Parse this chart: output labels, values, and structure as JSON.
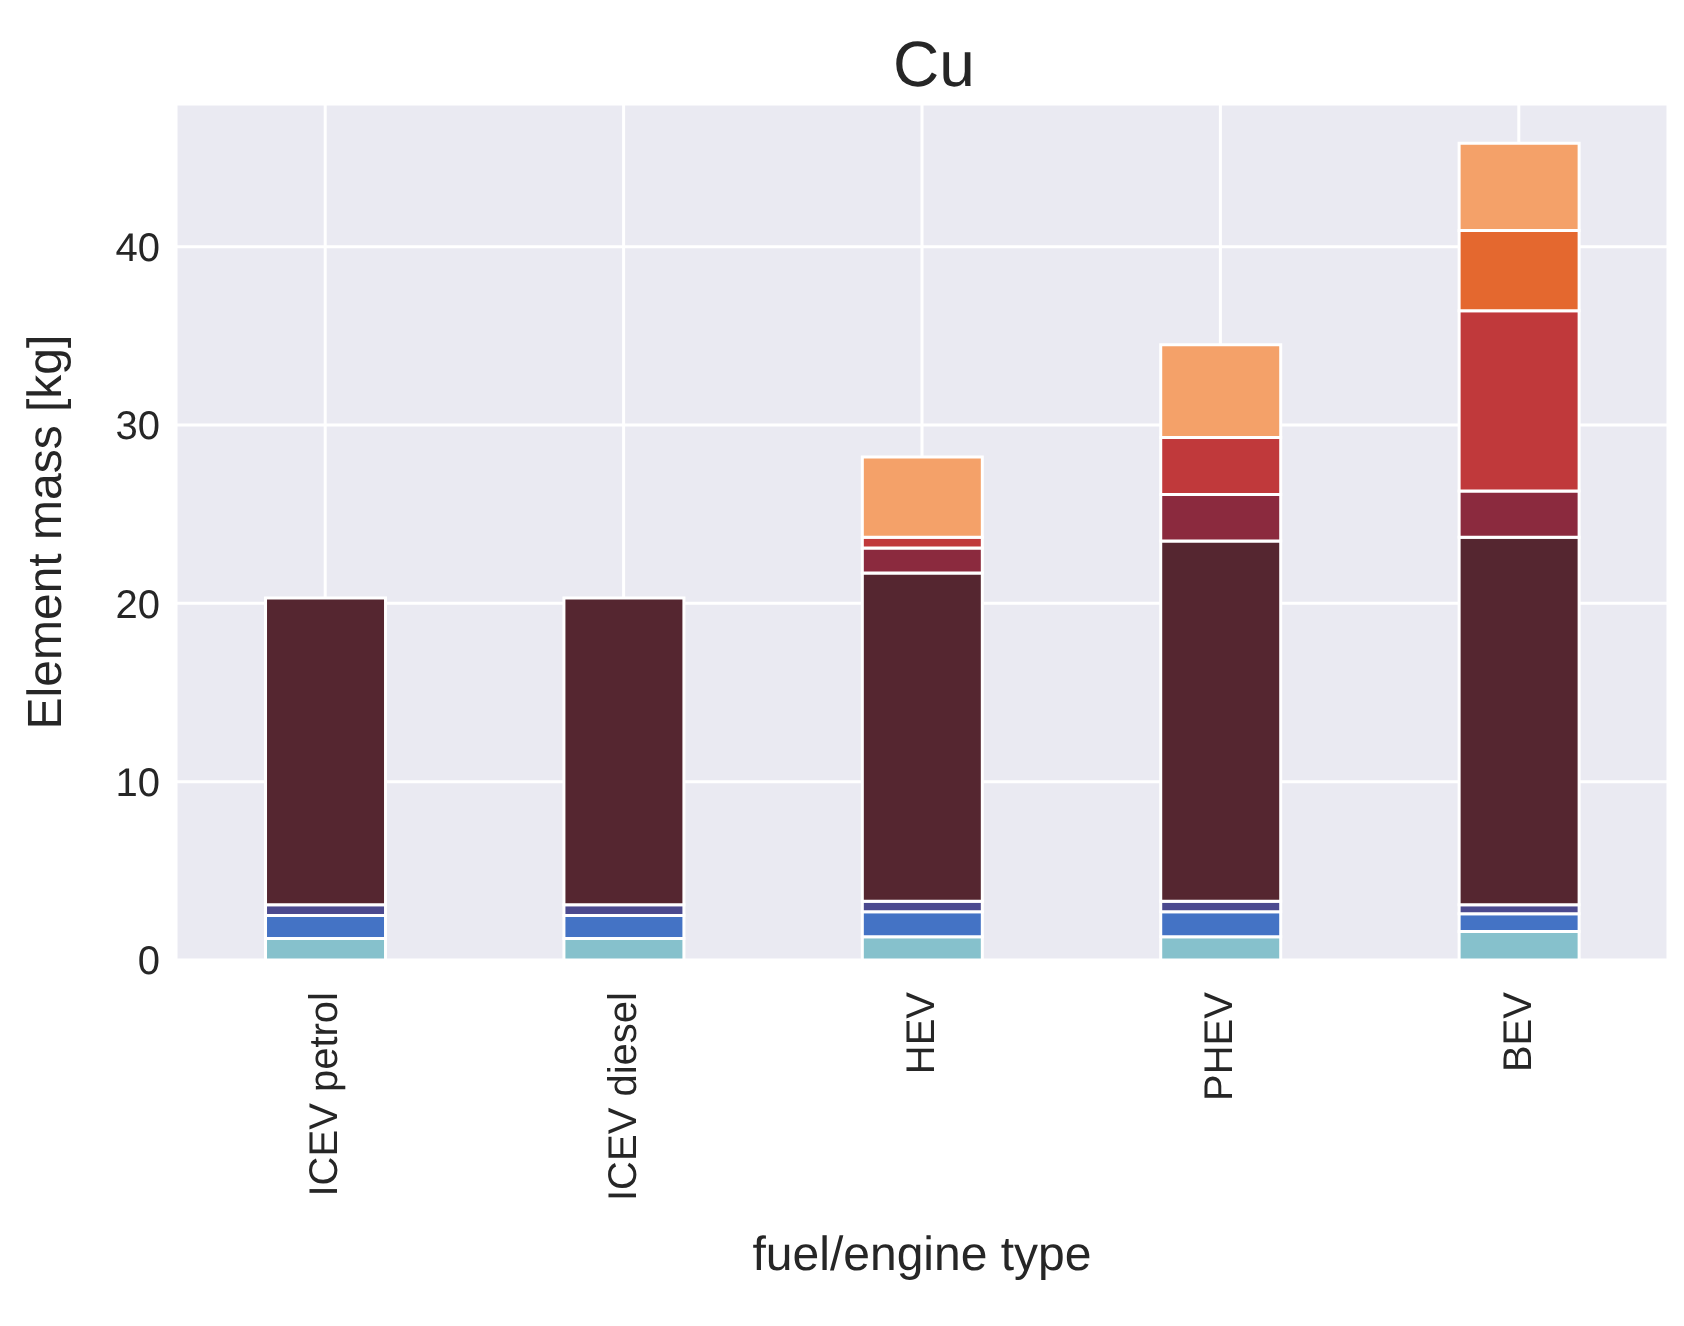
{
  "chart_data": {
    "type": "bar",
    "title": "Cu",
    "xlabel": "fuel/engine type",
    "ylabel": "Element mass [kg]",
    "categories": [
      "ICEV petrol",
      "ICEV diesel",
      "HEV",
      "PHEV",
      "BEV"
    ],
    "stacked": true,
    "grid": true,
    "ylim": [
      0,
      48
    ],
    "yticks": [
      0,
      10,
      20,
      30,
      40
    ],
    "series": [
      {
        "color": "#86c1cc",
        "values": [
          1.2,
          1.2,
          1.3,
          1.3,
          1.6
        ]
      },
      {
        "color": "#4473c5",
        "values": [
          1.3,
          1.3,
          1.4,
          1.4,
          1.0
        ]
      },
      {
        "color": "#4b4a8f",
        "values": [
          0.6,
          0.6,
          0.6,
          0.6,
          0.5
        ]
      },
      {
        "color": "#552630",
        "values": [
          17.2,
          17.2,
          18.4,
          20.2,
          20.6
        ]
      },
      {
        "color": "#8b2a3e",
        "values": [
          0,
          0,
          1.4,
          2.6,
          2.6
        ]
      },
      {
        "color": "#c0393b",
        "values": [
          0,
          0,
          0.6,
          3.2,
          10.1
        ]
      },
      {
        "color": "#e4682f",
        "values": [
          0,
          0,
          0,
          0,
          4.5
        ]
      },
      {
        "color": "#f4a169",
        "values": [
          0,
          0,
          4.5,
          5.2,
          4.9
        ]
      }
    ]
  }
}
